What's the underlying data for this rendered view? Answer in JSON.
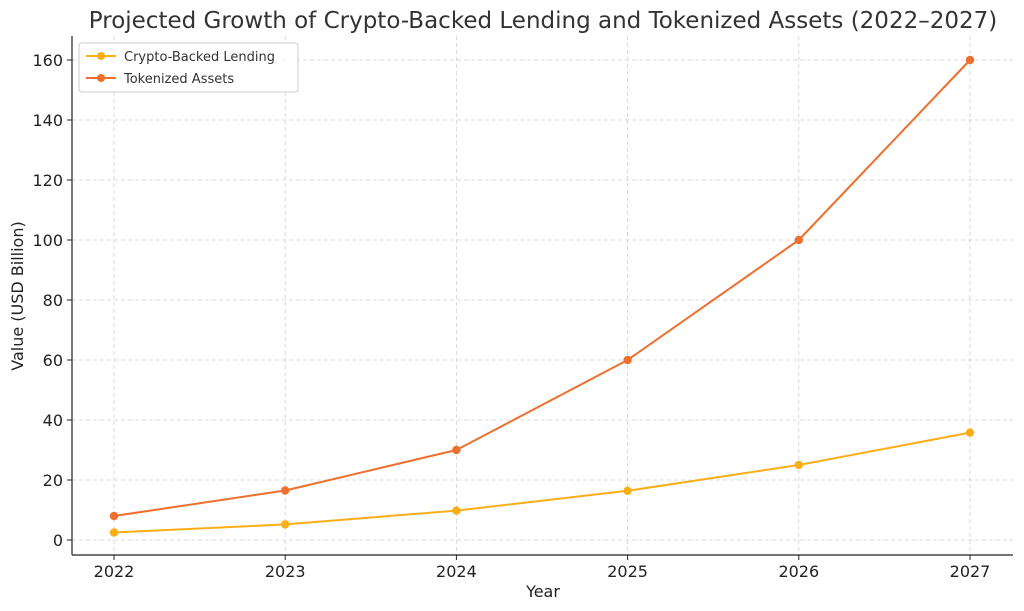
{
  "chart_data": {
    "type": "line",
    "title": "Projected Growth of Crypto-Backed Lending and Tokenized Assets (2022–2027)",
    "xlabel": "Year",
    "ylabel": "Value (USD Billion)",
    "categories": [
      "2022",
      "2023",
      "2024",
      "2025",
      "2026",
      "2027"
    ],
    "series": [
      {
        "name": "Crypto-Backed Lending",
        "color": "#FBAE17",
        "values": [
          2.5,
          5.2,
          9.8,
          16.4,
          25.0,
          35.8
        ]
      },
      {
        "name": "Tokenized Assets",
        "color": "#EF6F2E",
        "values": [
          8.0,
          16.5,
          30.0,
          60.0,
          100.0,
          160.0
        ]
      }
    ],
    "ylim": [
      -5,
      168
    ],
    "yticks": [
      "0",
      "20",
      "40",
      "60",
      "80",
      "100",
      "120",
      "140",
      "160"
    ],
    "grid": true,
    "legend_position": "top-left"
  }
}
